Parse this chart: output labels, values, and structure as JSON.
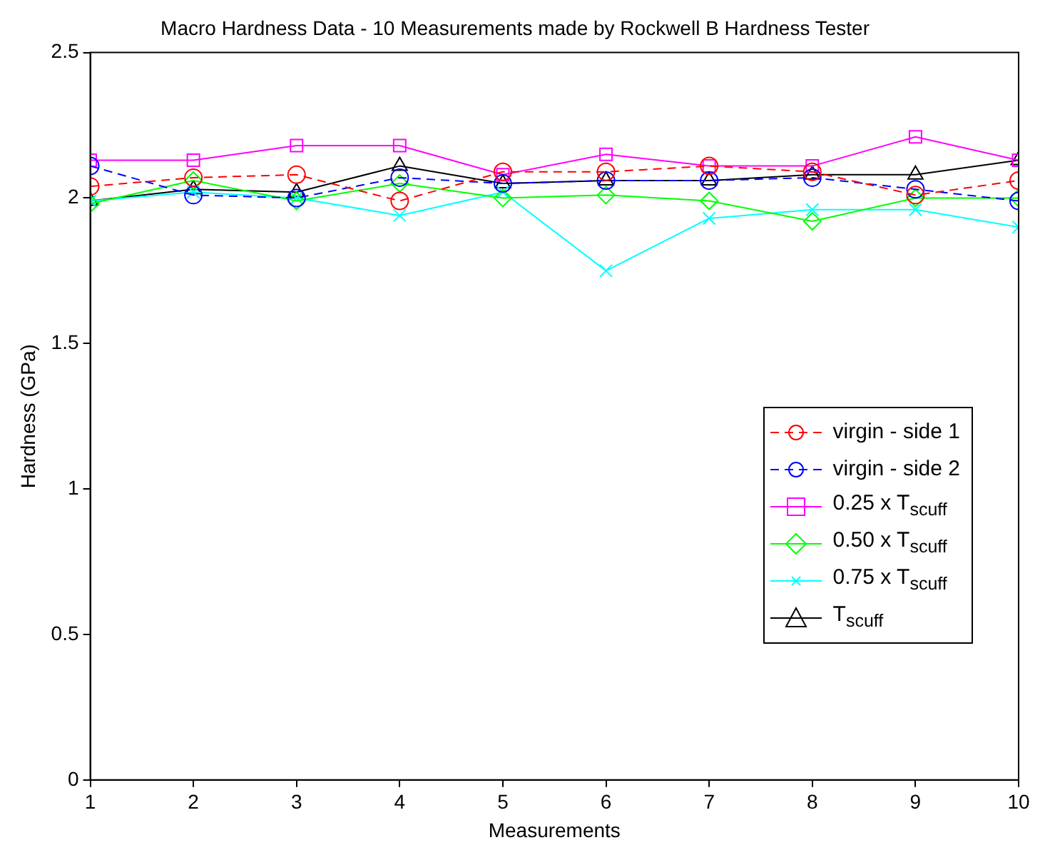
{
  "chart_data": {
    "type": "line",
    "title": "Macro Hardness Data - 10 Measurements made by Rockwell B Hardness Tester",
    "xlabel": "Measurements",
    "ylabel": "Hardness (GPa)",
    "x": [
      1,
      2,
      3,
      4,
      5,
      6,
      7,
      8,
      9,
      10
    ],
    "xlim": [
      1,
      10
    ],
    "xticks": [
      1,
      2,
      3,
      4,
      5,
      6,
      7,
      8,
      9,
      10
    ],
    "ylim": [
      0,
      2.5
    ],
    "yticks": [
      0,
      0.5,
      1,
      1.5,
      2,
      2.5
    ],
    "grid": false,
    "legend": "right",
    "series": [
      {
        "name": "virgin - side 1",
        "color": "#ff0000",
        "marker": "circle",
        "line_style": "dashed",
        "values": [
          2.04,
          2.07,
          2.08,
          1.99,
          2.09,
          2.09,
          2.11,
          2.09,
          2.01,
          2.06
        ]
      },
      {
        "name": "virgin - side 2",
        "color": "#0000ff",
        "marker": "circle",
        "line_style": "dashed",
        "values": [
          2.11,
          2.01,
          2.0,
          2.07,
          2.05,
          2.06,
          2.06,
          2.07,
          2.03,
          1.99
        ]
      },
      {
        "name": "0.25 x T$_{scuff}$",
        "color": "#ff00ff",
        "marker": "square",
        "line_style": "solid",
        "values": [
          2.13,
          2.13,
          2.18,
          2.18,
          2.08,
          2.15,
          2.11,
          2.11,
          2.21,
          2.13
        ]
      },
      {
        "name": "0.50 x T$_{scuff}$",
        "color": "#00ff00",
        "marker": "diamond",
        "line_style": "solid",
        "values": [
          1.98,
          2.06,
          1.99,
          2.05,
          2.0,
          2.01,
          1.99,
          1.92,
          2.0,
          2.0
        ]
      },
      {
        "name": "0.75 x T$_{scuff}$",
        "color": "#00ffff",
        "marker": "cross",
        "line_style": "solid",
        "values": [
          1.99,
          2.02,
          2.0,
          1.94,
          2.02,
          1.75,
          1.93,
          1.96,
          1.96,
          1.9
        ]
      },
      {
        "name": "T$_{scuff}$",
        "color": "#000000",
        "marker": "triangle",
        "line_style": "solid",
        "values": [
          1.99,
          2.03,
          2.02,
          2.11,
          2.05,
          2.06,
          2.06,
          2.08,
          2.08,
          2.13
        ]
      }
    ]
  }
}
